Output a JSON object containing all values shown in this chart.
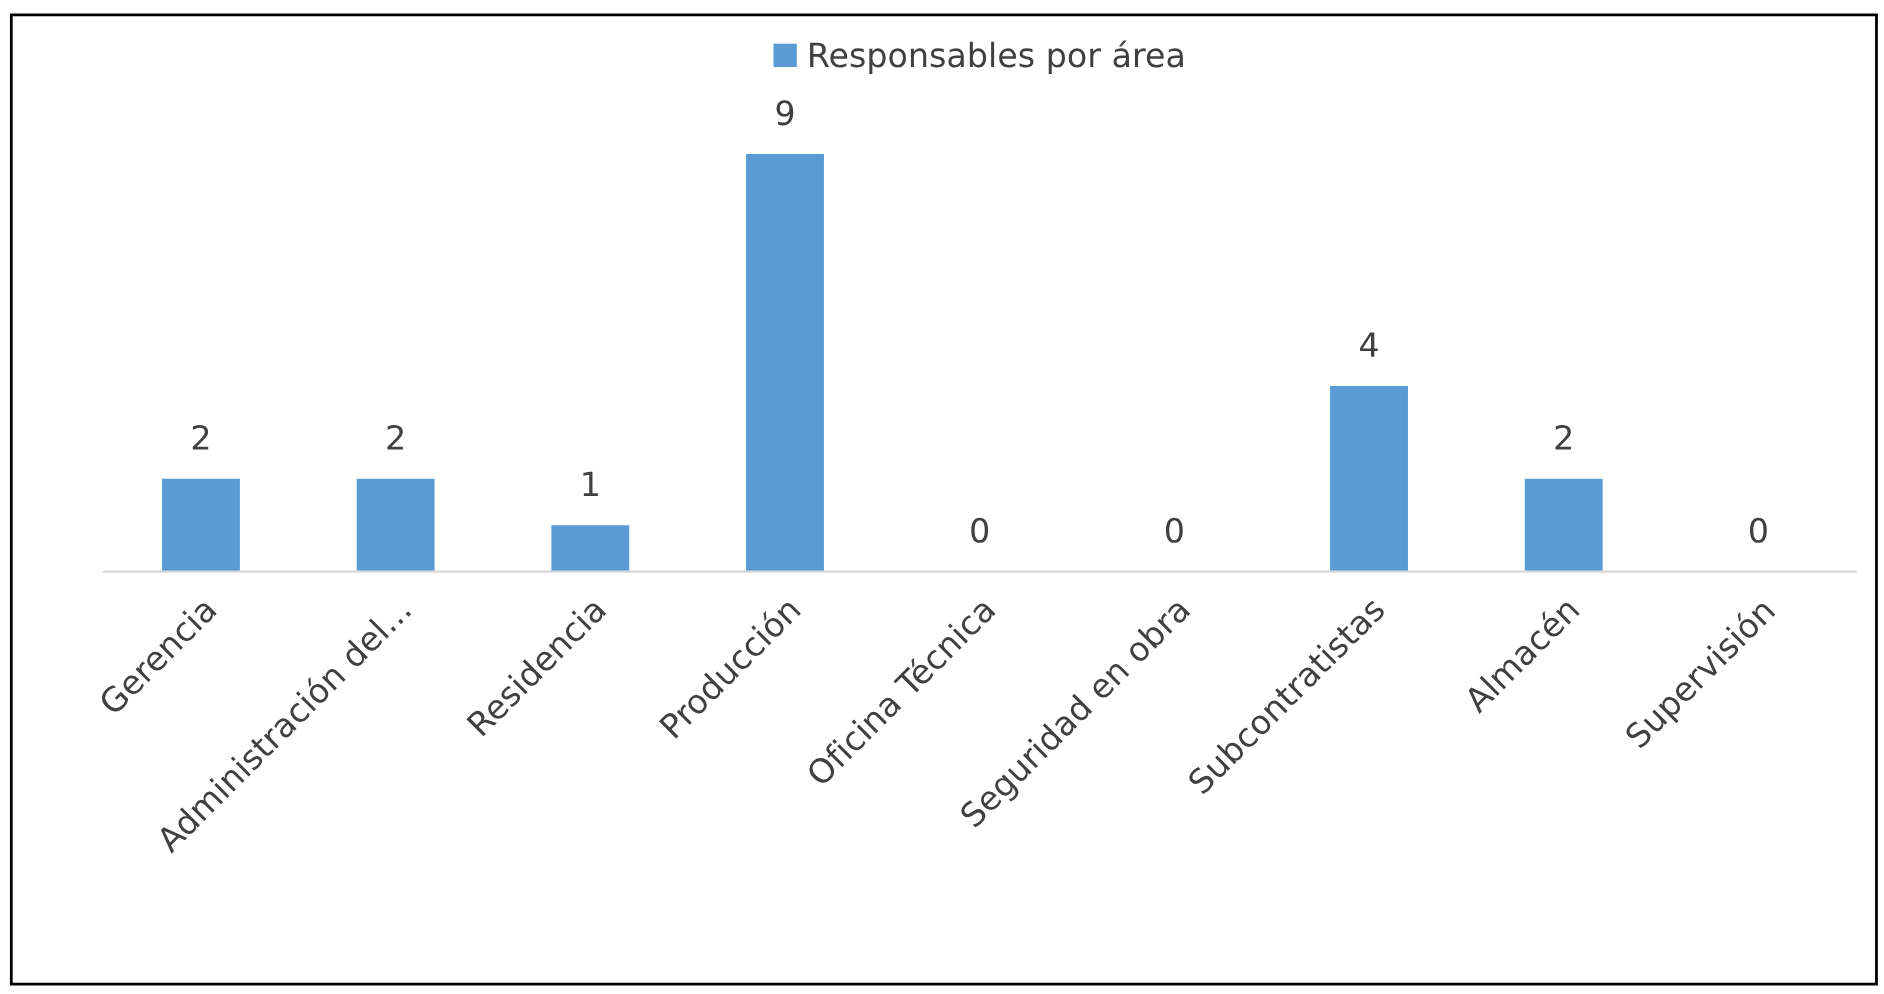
{
  "chart_data": {
    "type": "bar",
    "categories": [
      "Gerencia",
      "Administración del...",
      "Residencia",
      "Producción",
      "Oficina Técnica",
      "Seguridad en obra",
      "Subcontratistas",
      "Almacén",
      "Supervisión"
    ],
    "series": [
      {
        "name": "Responsables por área",
        "color": "#5b9bd5",
        "values": [
          2,
          2,
          1,
          9,
          0,
          0,
          4,
          2,
          0
        ]
      }
    ],
    "data_labels": true,
    "legend": "top",
    "grid": false
  }
}
